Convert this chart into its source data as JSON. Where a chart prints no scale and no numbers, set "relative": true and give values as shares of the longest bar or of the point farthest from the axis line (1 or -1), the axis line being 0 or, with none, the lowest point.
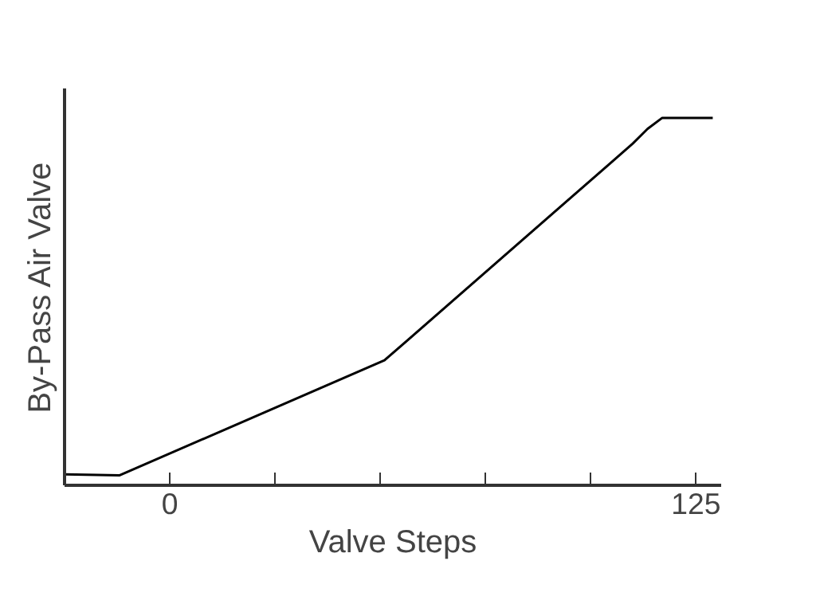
{
  "chart_data": {
    "type": "line",
    "xlabel": "Valve Steps",
    "ylabel": "By-Pass Air Valve",
    "relative": true,
    "x": [
      -25,
      -12,
      51,
      110,
      113.5,
      117,
      129
    ],
    "values": [
      0.03,
      0.027,
      0.34,
      0.93,
      0.97,
      1,
      1
    ],
    "color": "#000000",
    "xlim": [
      -25,
      131
    ],
    "xticks": [
      0,
      {
        "value": 25,
        "label": null
      },
      {
        "value": 50,
        "label": null
      },
      {
        "value": 75,
        "label": null
      },
      {
        "value": 100,
        "label": null
      },
      125
    ],
    "tick_labels": "x",
    "grid": false,
    "marker": "none",
    "line_style": "solid"
  }
}
